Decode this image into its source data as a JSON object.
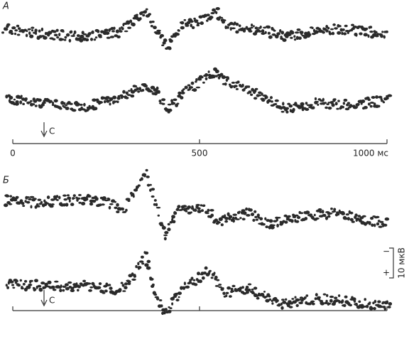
{
  "panels": [
    {
      "label": "А",
      "stimulus": "С"
    },
    {
      "label": "Б",
      "stimulus": "С"
    }
  ],
  "time_axis": {
    "ticks": [
      "0",
      "500",
      "1000 мс"
    ]
  },
  "scale_bar": {
    "minus": "−",
    "plus": "+",
    "label": "10 мкВ"
  }
}
